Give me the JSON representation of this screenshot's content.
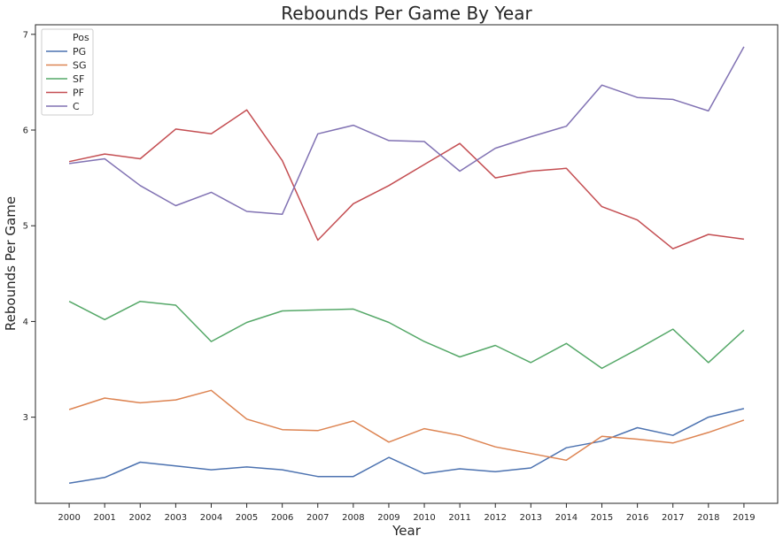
{
  "chart_data": {
    "type": "line",
    "title": "Rebounds Per Game By Year",
    "xlabel": "Year",
    "ylabel": "Rebounds Per Game",
    "x": [
      2000,
      2001,
      2002,
      2003,
      2004,
      2005,
      2006,
      2007,
      2008,
      2009,
      2010,
      2011,
      2012,
      2013,
      2014,
      2015,
      2016,
      2017,
      2018,
      2019
    ],
    "xlim": [
      1999.05,
      2019.95
    ],
    "ylim": [
      2.1,
      7.1
    ],
    "yticks": [
      3,
      4,
      5,
      6,
      7
    ],
    "grid": false,
    "legend": {
      "title": "Pos",
      "placement": "top-left"
    },
    "series": [
      {
        "name": "PG",
        "color": "#4c72b0",
        "values": [
          2.31,
          2.37,
          2.53,
          2.49,
          2.45,
          2.48,
          2.45,
          2.38,
          2.38,
          2.58,
          2.41,
          2.46,
          2.43,
          2.47,
          2.68,
          2.75,
          2.89,
          2.81,
          3.0,
          3.09
        ]
      },
      {
        "name": "SG",
        "color": "#dd8452",
        "values": [
          3.08,
          3.2,
          3.15,
          3.18,
          3.28,
          2.98,
          2.87,
          2.86,
          2.96,
          2.74,
          2.88,
          2.81,
          2.69,
          2.62,
          2.55,
          2.8,
          2.77,
          2.73,
          2.84,
          2.97
        ]
      },
      {
        "name": "SF",
        "color": "#55a868",
        "values": [
          4.21,
          4.02,
          4.21,
          4.17,
          3.79,
          3.99,
          4.11,
          4.12,
          4.13,
          3.99,
          3.79,
          3.63,
          3.75,
          3.57,
          3.77,
          3.51,
          3.71,
          3.92,
          3.57,
          3.91
        ]
      },
      {
        "name": "PF",
        "color": "#c44e52",
        "values": [
          5.67,
          5.75,
          5.7,
          6.01,
          5.96,
          6.21,
          5.68,
          4.85,
          5.23,
          5.42,
          5.64,
          5.86,
          5.5,
          5.57,
          5.6,
          5.2,
          5.06,
          4.76,
          4.91,
          4.86
        ]
      },
      {
        "name": "C",
        "color": "#8172b3",
        "values": [
          5.65,
          5.7,
          5.42,
          5.21,
          5.35,
          5.15,
          5.12,
          5.96,
          6.05,
          5.89,
          5.88,
          5.57,
          5.81,
          5.93,
          6.04,
          6.47,
          6.34,
          6.32,
          6.2,
          6.87
        ]
      }
    ]
  }
}
